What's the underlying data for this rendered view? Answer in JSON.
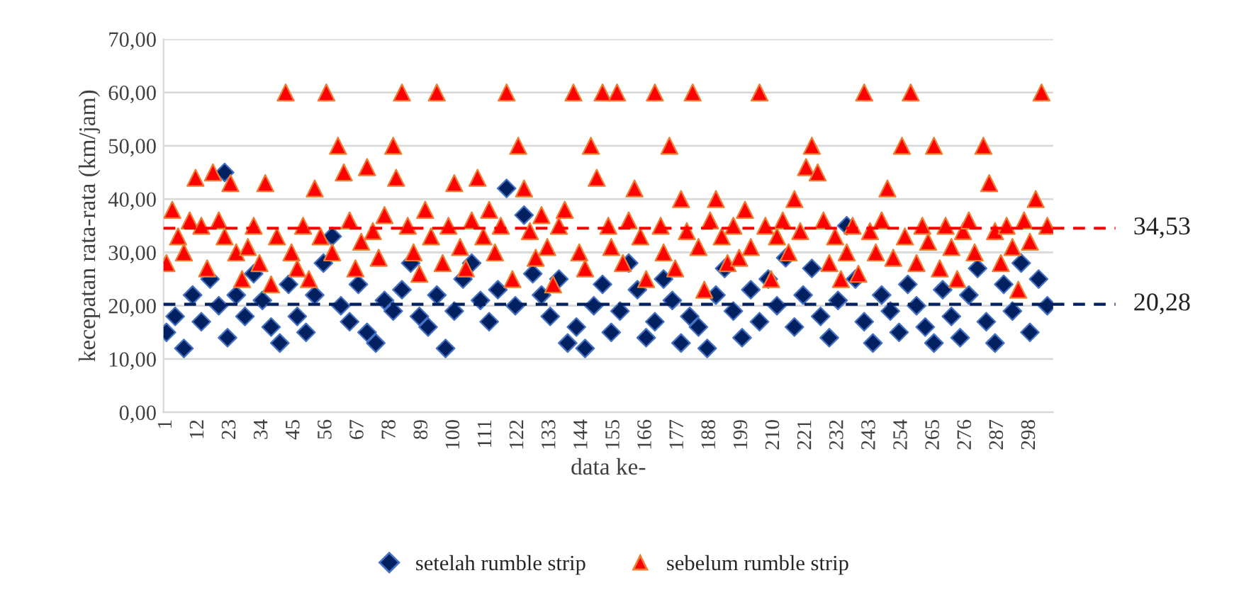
{
  "chart_data": {
    "type": "scatter",
    "xlabel": "data ke-",
    "ylabel": "kecepatan rata-rata (km/jam)",
    "xlim": [
      0,
      306
    ],
    "xticks": [
      1,
      12,
      23,
      34,
      45,
      56,
      67,
      78,
      89,
      100,
      111,
      122,
      133,
      144,
      155,
      166,
      177,
      188,
      199,
      210,
      221,
      232,
      243,
      254,
      265,
      276,
      287,
      298
    ],
    "ylim": [
      0,
      70
    ],
    "yticks": [
      {
        "value": 0,
        "label": "0,00"
      },
      {
        "value": 10,
        "label": "10,00"
      },
      {
        "value": 20,
        "label": "20,00"
      },
      {
        "value": 30,
        "label": "30,00"
      },
      {
        "value": 40,
        "label": "40,00"
      },
      {
        "value": 50,
        "label": "50,00"
      },
      {
        "value": 60,
        "label": "60,00"
      },
      {
        "value": 70,
        "label": "70,00"
      }
    ],
    "grid": "y",
    "legend": "bottom",
    "ref_lines": [
      {
        "axis": "y",
        "value": 34.53,
        "label": "34,53",
        "color": "#ff0000",
        "line_style": "dashed"
      },
      {
        "axis": "y",
        "value": 20.28,
        "label": "20,28",
        "color": "#002060",
        "line_style": "dashed"
      }
    ],
    "series": [
      {
        "name": "setelah rumble strip",
        "color": "#002060",
        "marker": "diamond",
        "x": [
          1,
          4,
          7,
          10,
          13,
          16,
          19,
          21,
          22,
          25,
          28,
          31,
          34,
          37,
          40,
          43,
          46,
          49,
          52,
          55,
          58,
          61,
          64,
          67,
          70,
          73,
          76,
          79,
          82,
          85,
          88,
          91,
          94,
          97,
          100,
          103,
          106,
          109,
          112,
          115,
          118,
          121,
          124,
          127,
          130,
          133,
          136,
          139,
          142,
          145,
          148,
          151,
          154,
          157,
          160,
          163,
          166,
          169,
          172,
          175,
          178,
          181,
          184,
          187,
          190,
          193,
          196,
          199,
          202,
          205,
          208,
          211,
          214,
          217,
          220,
          223,
          226,
          229,
          232,
          235,
          238,
          241,
          244,
          247,
          250,
          253,
          256,
          259,
          262,
          265,
          268,
          271,
          274,
          277,
          280,
          283,
          286,
          289,
          292,
          295,
          298,
          301,
          304
        ],
        "values": [
          15,
          18,
          12,
          22,
          17,
          25,
          20,
          45,
          14,
          22,
          18,
          26,
          21,
          16,
          13,
          24,
          18,
          15,
          22,
          28,
          33,
          20,
          17,
          24,
          15,
          13,
          21,
          19,
          23,
          28,
          18,
          16,
          22,
          12,
          19,
          25,
          28,
          21,
          17,
          23,
          42,
          20,
          37,
          26,
          22,
          18,
          25,
          13,
          16,
          12,
          20,
          24,
          15,
          19,
          28,
          23,
          14,
          17,
          25,
          21,
          13,
          18,
          16,
          12,
          22,
          27,
          19,
          14,
          23,
          17,
          25,
          20,
          29,
          16,
          22,
          27,
          18,
          14,
          21,
          35,
          25,
          17,
          13,
          22,
          19,
          15,
          24,
          20,
          16,
          13,
          23,
          18,
          14,
          22,
          27,
          17,
          13,
          24,
          19,
          28,
          15,
          25,
          20
        ]
      },
      {
        "name": "sebelum rumble strip",
        "color": "#ff0000",
        "marker": "triangle",
        "x": [
          1,
          3,
          5,
          7,
          9,
          11,
          13,
          15,
          17,
          19,
          21,
          23,
          25,
          27,
          29,
          31,
          33,
          35,
          37,
          39,
          42,
          44,
          46,
          48,
          50,
          52,
          54,
          56,
          58,
          60,
          62,
          64,
          66,
          68,
          70,
          72,
          74,
          76,
          79,
          80,
          82,
          84,
          86,
          88,
          90,
          92,
          94,
          96,
          98,
          100,
          102,
          104,
          106,
          108,
          110,
          112,
          114,
          116,
          118,
          120,
          122,
          124,
          126,
          128,
          130,
          132,
          134,
          136,
          138,
          141,
          143,
          145,
          147,
          149,
          151,
          153,
          154,
          156,
          158,
          160,
          162,
          164,
          166,
          169,
          171,
          172,
          174,
          176,
          178,
          180,
          182,
          184,
          186,
          188,
          190,
          192,
          194,
          196,
          198,
          200,
          202,
          205,
          207,
          209,
          211,
          213,
          215,
          217,
          219,
          221,
          223,
          225,
          227,
          229,
          231,
          233,
          235,
          237,
          239,
          241,
          243,
          245,
          247,
          249,
          251,
          254,
          255,
          257,
          259,
          261,
          263,
          265,
          267,
          269,
          271,
          273,
          275,
          277,
          279,
          282,
          284,
          286,
          288,
          290,
          292,
          294,
          296,
          298,
          300,
          302,
          304
        ],
        "values": [
          28,
          38,
          33,
          30,
          36,
          44,
          35,
          27,
          45,
          36,
          33,
          43,
          30,
          25,
          31,
          35,
          28,
          43,
          24,
          33,
          60,
          30,
          27,
          35,
          25,
          42,
          33,
          60,
          30,
          50,
          45,
          36,
          27,
          32,
          46,
          34,
          29,
          37,
          50,
          44,
          60,
          35,
          30,
          26,
          38,
          33,
          60,
          28,
          35,
          43,
          31,
          27,
          36,
          44,
          33,
          38,
          30,
          35,
          60,
          25,
          50,
          42,
          34,
          29,
          37,
          31,
          24,
          35,
          38,
          60,
          30,
          27,
          50,
          44,
          60,
          35,
          31,
          60,
          28,
          36,
          42,
          33,
          25,
          60,
          35,
          30,
          50,
          27,
          40,
          34,
          60,
          31,
          23,
          36,
          40,
          33,
          28,
          35,
          29,
          38,
          31,
          60,
          35,
          25,
          33,
          36,
          30,
          40,
          34,
          46,
          50,
          45,
          36,
          28,
          33,
          25,
          30,
          35,
          26,
          60,
          34,
          30,
          36,
          42,
          29,
          50,
          33,
          60,
          28,
          35,
          32,
          50,
          27,
          35,
          31,
          25,
          34,
          36,
          30,
          50,
          43,
          34,
          28,
          35,
          31,
          23,
          36,
          32,
          40,
          60,
          35
        ]
      }
    ]
  }
}
